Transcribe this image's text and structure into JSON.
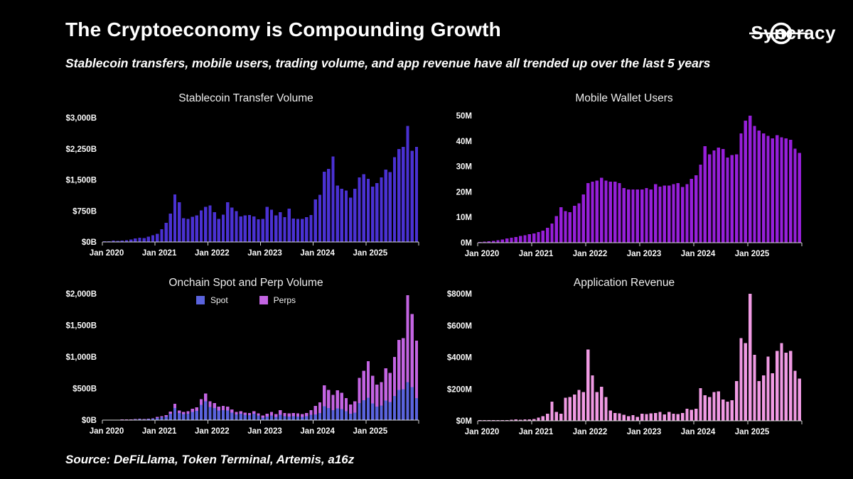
{
  "page": {
    "title": "The Cryptoeconomy is Compounding Growth",
    "subtitle": "Stablecoin transfers, mobile users, trading volume, and app revenue have all trended up over the last 5 years",
    "source": "Source: DeFiLlama, Token Terminal, Artemis, a16z",
    "background": "#000000"
  },
  "brand": {
    "name": "Syncracy"
  },
  "chart_data": [
    {
      "type": "bar",
      "title": "Stablecoin Transfer Volume",
      "unit": "$B",
      "ylim": [
        0,
        3000
      ],
      "y_ticks": [
        0,
        750,
        1500,
        2250,
        3000
      ],
      "y_tick_labels": [
        "$0B",
        "$750B",
        "$1,500B",
        "$2,250B",
        "$3,000B"
      ],
      "x_range": {
        "start": "Jan 2020",
        "end": "Dec 2025",
        "frequency": "monthly"
      },
      "x_tick_labels": [
        "Jan 2020",
        "Jan 2021",
        "Jan 2022",
        "Jan 2023",
        "Jan 2024",
        "Jan 2025"
      ],
      "x_tick_month_indices": [
        0,
        12,
        24,
        36,
        48,
        60
      ],
      "bar_color": "#4a31d2",
      "values": [
        15,
        20,
        35,
        30,
        35,
        45,
        60,
        90,
        100,
        95,
        130,
        160,
        200,
        310,
        460,
        690,
        1150,
        960,
        575,
        560,
        610,
        640,
        760,
        850,
        880,
        720,
        560,
        660,
        960,
        830,
        750,
        620,
        640,
        650,
        620,
        550,
        560,
        850,
        780,
        640,
        720,
        600,
        810,
        570,
        560,
        555,
        600,
        650,
        1030,
        1140,
        1700,
        1770,
        2070,
        1360,
        1290,
        1240,
        1075,
        1290,
        1560,
        1640,
        1530,
        1340,
        1420,
        1560,
        1750,
        1690,
        2050,
        2250,
        2300,
        2800,
        2200,
        2300
      ]
    },
    {
      "type": "bar",
      "title": "Mobile Wallet Users",
      "unit": "M",
      "ylim": [
        0,
        50
      ],
      "y_ticks": [
        0,
        10,
        20,
        30,
        40,
        50
      ],
      "y_tick_labels": [
        "0M",
        "10M",
        "20M",
        "30M",
        "40M",
        "50M"
      ],
      "x_range": {
        "start": "Jan 2020",
        "end": "Dec 2025",
        "frequency": "monthly"
      },
      "x_tick_labels": [
        "Jan 2020",
        "Jan 2021",
        "Jan 2022",
        "Jan 2023",
        "Jan 2024",
        "Jan 2025"
      ],
      "x_tick_month_indices": [
        0,
        12,
        24,
        36,
        48,
        60
      ],
      "bar_color": "#961fd9",
      "values": [
        0.3,
        0.4,
        0.5,
        0.7,
        1,
        1.3,
        1.7,
        2,
        2.3,
        2.7,
        3,
        3.4,
        3.7,
        4.2,
        4.8,
        5.8,
        7.5,
        10.5,
        14,
        12.5,
        12,
        14.5,
        15.5,
        19,
        23.5,
        24,
        24.5,
        25.5,
        24.5,
        24,
        24,
        23.5,
        21.5,
        21,
        21,
        21,
        21,
        21.5,
        21,
        23,
        22,
        22.5,
        22.5,
        23,
        23.5,
        21.9,
        23,
        25.1,
        26.5,
        30.7,
        38,
        34.8,
        36.3,
        37.4,
        36.9,
        33.5,
        34.5,
        34.8,
        43,
        48,
        50,
        46,
        44.2,
        43,
        42,
        41,
        42.3,
        41.5,
        41,
        40.5,
        37,
        35.3
      ]
    },
    {
      "type": "bar",
      "stacked": true,
      "title": "Onchain Spot and Perp Volume",
      "unit": "$B",
      "ylim": [
        0,
        2000
      ],
      "y_ticks": [
        0,
        500,
        1000,
        1500,
        2000
      ],
      "y_tick_labels": [
        "$0B",
        "$500B",
        "$1,000B",
        "$1,500B",
        "$2,000B"
      ],
      "x_range": {
        "start": "Jan 2020",
        "end": "Dec 2025",
        "frequency": "monthly"
      },
      "x_tick_labels": [
        "Jan 2020",
        "Jan 2021",
        "Jan 2022",
        "Jan 2023",
        "Jan 2024",
        "Jan 2025"
      ],
      "x_tick_month_indices": [
        0,
        12,
        24,
        36,
        48,
        60
      ],
      "legend_position": "top-center",
      "series": [
        {
          "name": "Spot",
          "color": "#5a63dd",
          "values": [
            2,
            2,
            3,
            3,
            4,
            5,
            8,
            14,
            18,
            14,
            16,
            22,
            35,
            45,
            56,
            100,
            190,
            110,
            95,
            102,
            130,
            148,
            240,
            300,
            207,
            189,
            150,
            158,
            150,
            117,
            91,
            99,
            83,
            78,
            99,
            73,
            41,
            55,
            72,
            51,
            87,
            63,
            57,
            61,
            57,
            53,
            63,
            87,
            90,
            112,
            220,
            192,
            160,
            188,
            172,
            140,
            100,
            120,
            268,
            312,
            355,
            265,
            215,
            230,
            310,
            285,
            380,
            480,
            490,
            600,
            520,
            350
          ]
        },
        {
          "name": "Perps",
          "color": "#c364e2",
          "values": [
            0,
            0,
            0,
            0,
            1,
            1,
            2,
            3,
            4,
            3,
            4,
            6,
            13,
            18,
            22,
            37,
            70,
            42,
            35,
            39,
            48,
            56,
            90,
            120,
            89,
            81,
            65,
            68,
            65,
            50,
            39,
            42,
            36,
            33,
            42,
            31,
            33,
            45,
            58,
            42,
            72,
            52,
            47,
            50,
            47,
            43,
            52,
            72,
            136,
            169,
            330,
            288,
            240,
            282,
            258,
            210,
            150,
            180,
            402,
            468,
            575,
            435,
            345,
            370,
            510,
            465,
            620,
            790,
            810,
            1380,
            1160,
            910
          ]
        }
      ]
    },
    {
      "type": "bar",
      "title": "Application Revenue",
      "unit": "$M",
      "ylim": [
        0,
        800
      ],
      "y_ticks": [
        0,
        200,
        400,
        600,
        800
      ],
      "y_tick_labels": [
        "$0M",
        "$200M",
        "$400M",
        "$600M",
        "$800M"
      ],
      "x_range": {
        "start": "Jan 2020",
        "end": "Dec 2025",
        "frequency": "monthly"
      },
      "x_tick_labels": [
        "Jan 2020",
        "Jan 2021",
        "Jan 2022",
        "Jan 2023",
        "Jan 2024",
        "Jan 2025"
      ],
      "x_tick_month_indices": [
        0,
        12,
        24,
        36,
        48,
        60
      ],
      "bar_color": "#f09ae3",
      "values": [
        2,
        2,
        3,
        3,
        3,
        4,
        5,
        7,
        8,
        6,
        8,
        10,
        12,
        20,
        28,
        45,
        120,
        55,
        45,
        145,
        150,
        165,
        195,
        180,
        450,
        285,
        180,
        215,
        150,
        65,
        50,
        48,
        38,
        30,
        35,
        25,
        45,
        42,
        48,
        50,
        55,
        40,
        55,
        45,
        42,
        50,
        75,
        70,
        75,
        205,
        160,
        150,
        180,
        185,
        135,
        120,
        130,
        250,
        520,
        490,
        800,
        415,
        250,
        285,
        405,
        300,
        440,
        490,
        430,
        440,
        315,
        265
      ]
    }
  ],
  "style": {
    "axis_color": "#d9d9d9",
    "tick_text_color": "#fafafa"
  }
}
